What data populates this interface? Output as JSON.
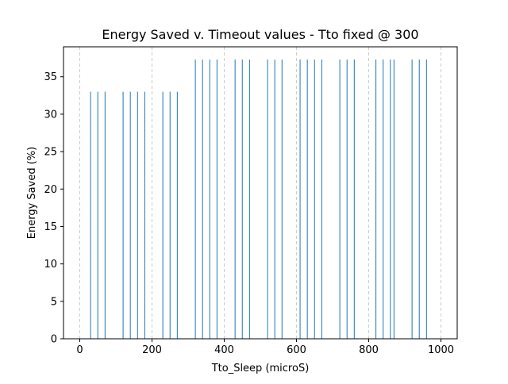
{
  "chart_data": {
    "type": "bar",
    "title": "Energy Saved v. Timeout values - Tto fixed @ 300",
    "xlabel": "Tto_Sleep (microS)",
    "ylabel": "Energy Saved (%)",
    "xlim": [
      -45,
      1045
    ],
    "ylim": [
      0,
      39
    ],
    "xticks": [
      0,
      200,
      400,
      600,
      800,
      1000
    ],
    "yticks": [
      0,
      5,
      10,
      15,
      20,
      25,
      30,
      35
    ],
    "grid": "x-dashed",
    "bar_color": "#1f77b4",
    "grid_color": "#cccccc",
    "x": [
      30,
      50,
      70,
      120,
      140,
      160,
      180,
      230,
      250,
      270,
      320,
      340,
      360,
      380,
      430,
      450,
      470,
      520,
      540,
      560,
      610,
      630,
      650,
      670,
      720,
      740,
      760,
      820,
      840,
      860,
      870,
      920,
      940,
      960
    ],
    "values": [
      33,
      33,
      33,
      33,
      33,
      33,
      33,
      33,
      33,
      33,
      37.3,
      37.3,
      37.3,
      37.3,
      37.3,
      37.3,
      37.3,
      37.3,
      37.3,
      37.3,
      37.3,
      37.3,
      37.3,
      37.3,
      37.3,
      37.3,
      37.3,
      37.3,
      37.3,
      37.3,
      37.3,
      37.3,
      37.3,
      37.3
    ]
  }
}
